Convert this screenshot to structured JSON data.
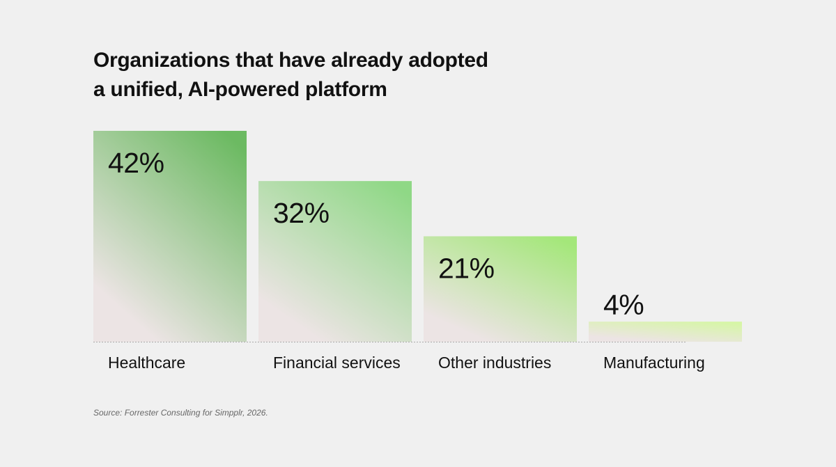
{
  "title_lines": [
    "Organizations that have already adopted",
    "a unified, AI-powered platform"
  ],
  "source": "Source: Forrester Consulting for Simpplr, 2026.",
  "chart_data": {
    "type": "bar",
    "title": "Organizations that have already adopted a unified, AI-powered platform",
    "categories": [
      "Healthcare",
      "Financial services",
      "Other industries",
      "Manufacturing"
    ],
    "values": [
      42,
      32,
      21,
      4
    ],
    "value_labels": [
      "42%",
      "32%",
      "21%",
      "4%"
    ],
    "unit": "%",
    "ylim": [
      0,
      42
    ],
    "grid": false,
    "baseline": "dotted",
    "colors": {
      "Healthcare": "#6cba62",
      "Financial services": "#8fd886",
      "Other industries": "#a4e77a",
      "Manufacturing": "#d6f6a6"
    },
    "fade_color": "#ece4e4"
  }
}
